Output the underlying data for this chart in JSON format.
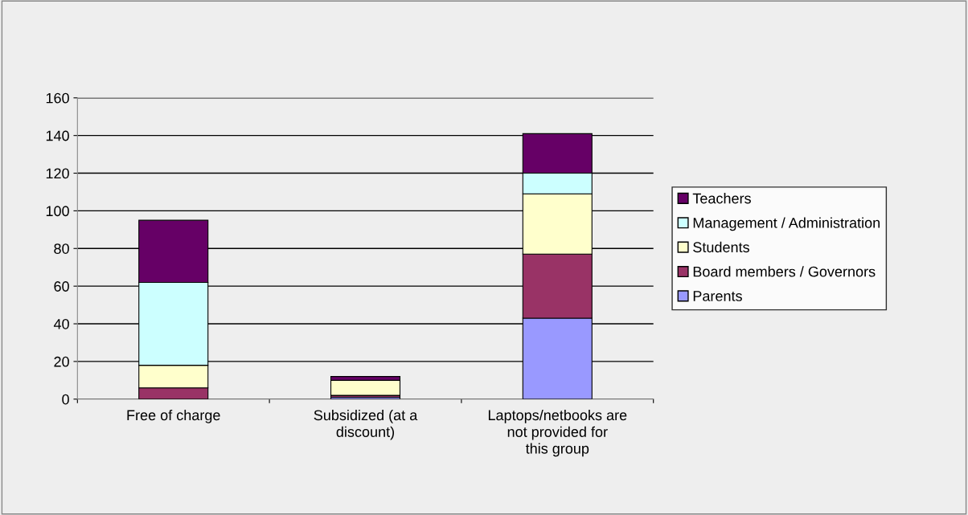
{
  "chart_data": {
    "type": "bar",
    "stacked": true,
    "categories": [
      "Free of charge",
      "Subsidized (at a discount)",
      "Laptops/netbooks are not provided for this group"
    ],
    "series": [
      {
        "name": "Parents",
        "color": "#9999ff",
        "values": [
          0,
          1,
          43
        ]
      },
      {
        "name": "Board members / Governors",
        "color": "#993366",
        "values": [
          6,
          1,
          34
        ]
      },
      {
        "name": "Students",
        "color": "#ffffcc",
        "values": [
          12,
          8,
          32
        ]
      },
      {
        "name": "Management / Administration",
        "color": "#ccffff",
        "values": [
          44,
          0,
          11
        ]
      },
      {
        "name": "Teachers",
        "color": "#660066",
        "values": [
          33,
          2,
          21
        ]
      }
    ],
    "ylim": [
      0,
      160
    ],
    "yticks": [
      0,
      20,
      40,
      60,
      80,
      100,
      120,
      140,
      160
    ],
    "grid": "y",
    "legend": "right"
  }
}
